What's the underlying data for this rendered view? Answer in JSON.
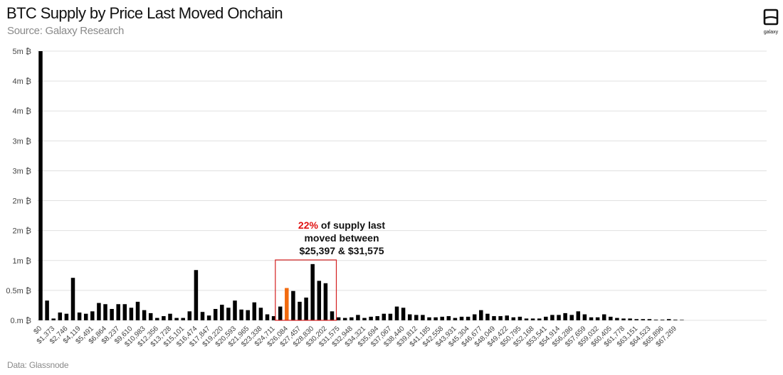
{
  "header": {
    "title": "BTC Supply by Price Last Moved Onchain",
    "subtitle": "Source: Galaxy Research"
  },
  "logo": {
    "label": "galaxy",
    "icon": "galaxy-logo-icon"
  },
  "footer": {
    "source": "Data: Glassnode"
  },
  "annotation": {
    "highlight": "22%",
    "line1_rest": " of supply last",
    "line2": "moved between",
    "line3": "$25,397 & $31,575"
  },
  "colors": {
    "bar": "#000000",
    "highlight_bar": "#f26a0f",
    "box": "#d42020",
    "grid": "#e0e0e0",
    "annotation_highlight": "#e01010"
  },
  "chart_data": {
    "type": "bar",
    "title": "BTC Supply by Price Last Moved Onchain",
    "subtitle": "Source: Galaxy Research",
    "ylabel": "",
    "xlabel": "",
    "ylim": [
      0,
      4.5
    ],
    "y_ticks": [
      0,
      0.5,
      1,
      1.5,
      2,
      2.5,
      3,
      3.5,
      4,
      4.5
    ],
    "y_tick_labels": [
      "0.m ₿",
      "0.5m ₿",
      "1m ₿",
      "2m ₿",
      "2m ₿",
      "3m ₿",
      "3m ₿",
      "4m ₿",
      "4m ₿",
      "5m ₿"
    ],
    "grid": true,
    "x_tick_labels": [
      "$0",
      "$1,373",
      "$2,746",
      "$4,119",
      "$5,491",
      "$6,864",
      "$8,237",
      "$9,610",
      "$10,983",
      "$12,356",
      "$13,728",
      "$15,101",
      "$16,474",
      "$17,847",
      "$19,220",
      "$20,593",
      "$21,965",
      "$23,338",
      "$24,711",
      "$26,084",
      "$27,457",
      "$28,830",
      "$30,202",
      "$31,575",
      "$32,948",
      "$34,321",
      "$35,694",
      "$37,067",
      "$38,440",
      "$39,812",
      "$41,185",
      "$42,558",
      "$43,931",
      "$45,304",
      "$46,677",
      "$48,049",
      "$49,422",
      "$50,795",
      "$52,168",
      "$53,541",
      "$54,914",
      "$56,286",
      "$57,659",
      "$59,032",
      "$60,405",
      "$61,778",
      "$63,151",
      "$64,523",
      "$65,896",
      "$67,269"
    ],
    "values": [
      4.5,
      0.33,
      0.03,
      0.13,
      0.11,
      0.71,
      0.13,
      0.11,
      0.15,
      0.29,
      0.27,
      0.19,
      0.27,
      0.27,
      0.21,
      0.31,
      0.17,
      0.12,
      0.04,
      0.07,
      0.11,
      0.04,
      0.04,
      0.15,
      0.84,
      0.14,
      0.08,
      0.19,
      0.26,
      0.21,
      0.33,
      0.18,
      0.17,
      0.3,
      0.21,
      0.1,
      0.07,
      0.23,
      0.54,
      0.49,
      0.31,
      0.38,
      0.94,
      0.66,
      0.62,
      0.15,
      0.05,
      0.04,
      0.05,
      0.09,
      0.04,
      0.06,
      0.07,
      0.11,
      0.11,
      0.23,
      0.21,
      0.1,
      0.09,
      0.09,
      0.05,
      0.05,
      0.06,
      0.07,
      0.04,
      0.06,
      0.06,
      0.1,
      0.17,
      0.11,
      0.07,
      0.07,
      0.08,
      0.05,
      0.06,
      0.03,
      0.03,
      0.03,
      0.06,
      0.09,
      0.09,
      0.12,
      0.09,
      0.15,
      0.1,
      0.05,
      0.05,
      0.1,
      0.06,
      0.04,
      0.03,
      0.03,
      0.02,
      0.02,
      0.02,
      0.01,
      0.01,
      0.02,
      0.01,
      0.0
    ],
    "highlight_index": 38,
    "box_range": [
      38,
      45
    ],
    "box_label": "22% of supply last moved between $25,397 & $31,575"
  }
}
